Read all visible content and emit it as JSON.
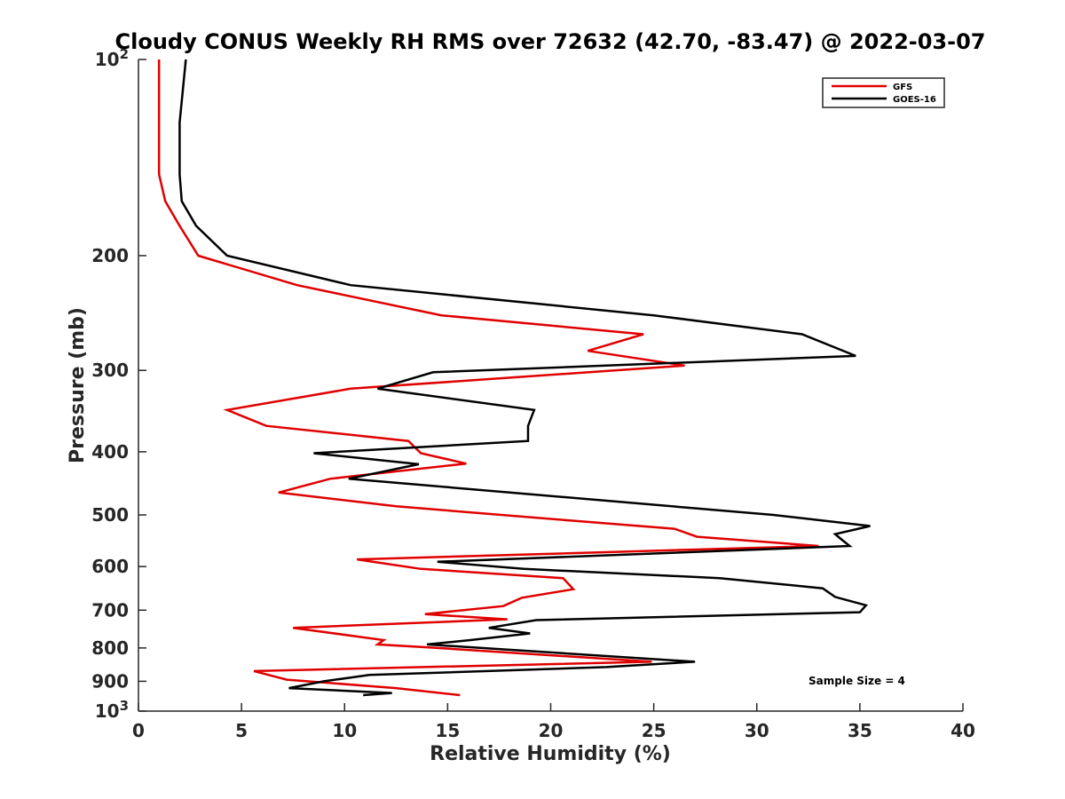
{
  "chart_data": {
    "type": "line",
    "title": "Cloudy CONUS Weekly RH RMS over 72632 (42.70, -83.47) @ 2022-03-07",
    "xlabel": "Relative Humidity (%)",
    "ylabel": "Pressure (mb)",
    "xlim": [
      0,
      40
    ],
    "ylim": [
      100,
      1000
    ],
    "y_scale": "log",
    "y_reversed": true,
    "grid": false,
    "legend_position": "top-right",
    "x_ticks": [
      "0",
      "5",
      "10",
      "15",
      "20",
      "25",
      "30",
      "35",
      "40"
    ],
    "y_ticks": [
      {
        "value": 100,
        "label": "10",
        "sup": "2"
      },
      {
        "value": 200,
        "label": "200",
        "sup": ""
      },
      {
        "value": 300,
        "label": "300",
        "sup": ""
      },
      {
        "value": 400,
        "label": "400",
        "sup": ""
      },
      {
        "value": 500,
        "label": "500",
        "sup": ""
      },
      {
        "value": 600,
        "label": "600",
        "sup": ""
      },
      {
        "value": 700,
        "label": "700",
        "sup": ""
      },
      {
        "value": 800,
        "label": "800",
        "sup": ""
      },
      {
        "value": 900,
        "label": "900",
        "sup": ""
      },
      {
        "value": 1000,
        "label": "10",
        "sup": "3"
      }
    ],
    "annotation": "Sample Size = 4",
    "series": [
      {
        "name": "GFS",
        "color": "#e00000",
        "points": [
          [
            1.0,
            100
          ],
          [
            1.0,
            125
          ],
          [
            1.0,
            150
          ],
          [
            1.3,
            165
          ],
          [
            2.0,
            180
          ],
          [
            2.9,
            200
          ],
          [
            7.7,
            222
          ],
          [
            14.7,
            247
          ],
          [
            24.5,
            264
          ],
          [
            21.8,
            280
          ],
          [
            26.5,
            295
          ],
          [
            10.3,
            320
          ],
          [
            4.3,
            345
          ],
          [
            6.2,
            365
          ],
          [
            13.1,
            385
          ],
          [
            13.7,
            402
          ],
          [
            15.9,
            417
          ],
          [
            9.3,
            440
          ],
          [
            6.8,
            462
          ],
          [
            12.5,
            485
          ],
          [
            21.0,
            510
          ],
          [
            26.0,
            525
          ],
          [
            27.1,
            540
          ],
          [
            33.0,
            558
          ],
          [
            10.6,
            585
          ],
          [
            13.7,
            605
          ],
          [
            20.6,
            625
          ],
          [
            21.1,
            650
          ],
          [
            18.6,
            670
          ],
          [
            17.7,
            690
          ],
          [
            13.9,
            710
          ],
          [
            17.9,
            723
          ],
          [
            7.5,
            745
          ],
          [
            11.9,
            778
          ],
          [
            11.6,
            790
          ],
          [
            14.0,
            798
          ],
          [
            24.9,
            840
          ],
          [
            5.6,
            868
          ],
          [
            7.2,
            895
          ],
          [
            12.5,
            922
          ],
          [
            15.6,
            945
          ]
        ]
      },
      {
        "name": "GOES-16",
        "color": "#000000",
        "points": [
          [
            2.3,
            100
          ],
          [
            2.0,
            125
          ],
          [
            2.0,
            150
          ],
          [
            2.1,
            165
          ],
          [
            2.8,
            180
          ],
          [
            4.3,
            200
          ],
          [
            10.3,
            222
          ],
          [
            25.0,
            247
          ],
          [
            32.2,
            264
          ],
          [
            34.8,
            285
          ],
          [
            14.3,
            302
          ],
          [
            11.6,
            320
          ],
          [
            19.2,
            345
          ],
          [
            18.9,
            365
          ],
          [
            18.9,
            385
          ],
          [
            8.5,
            402
          ],
          [
            13.6,
            418
          ],
          [
            10.2,
            440
          ],
          [
            30.8,
            500
          ],
          [
            35.5,
            520
          ],
          [
            33.8,
            535
          ],
          [
            34.1,
            545
          ],
          [
            34.5,
            558
          ],
          [
            14.5,
            590
          ],
          [
            18.7,
            605
          ],
          [
            28.2,
            625
          ],
          [
            33.2,
            648
          ],
          [
            33.8,
            668
          ],
          [
            35.3,
            688
          ],
          [
            35.0,
            705
          ],
          [
            19.3,
            725
          ],
          [
            17.0,
            745
          ],
          [
            19.0,
            760
          ],
          [
            16.1,
            778
          ],
          [
            14.0,
            790
          ],
          [
            27.0,
            840
          ],
          [
            22.7,
            856
          ],
          [
            11.2,
            880
          ],
          [
            9.0,
            900
          ],
          [
            7.3,
            922
          ],
          [
            12.3,
            938
          ],
          [
            10.9,
            945
          ]
        ]
      }
    ]
  }
}
